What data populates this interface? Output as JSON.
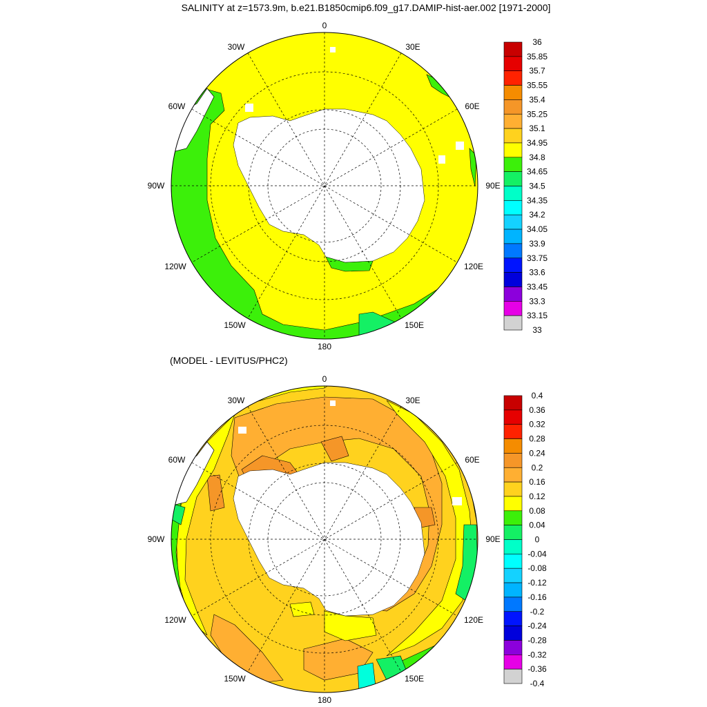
{
  "titles": {
    "top": "SALINITY at z=1573.9m, b.e21.B1850cmip6.f09_g17.DAMIP-hist-aer.002 [1971-2000]",
    "bottom": "(MODEL - LEVITUS/PHC2)"
  },
  "lon_labels": {
    "0": "0",
    "30E": "30E",
    "60E": "60E",
    "90E": "90E",
    "120E": "120E",
    "150E": "150E",
    "180": "180",
    "150W": "150W",
    "120W": "120W",
    "90W": "90W",
    "60W": "60W",
    "30W": "30W"
  },
  "colors": {
    "land": "#ffffff",
    "green": "#3cf00a",
    "yellow": "#ffff00",
    "light_orange": "#ffd21e",
    "orange": "#ffaf32",
    "dark_orange": "#f58c23",
    "mint": "#14f064",
    "cyan": "#00ffdc"
  },
  "colorbar_top": {
    "labels": [
      "36",
      "35.85",
      "35.7",
      "35.55",
      "35.4",
      "35.25",
      "35.1",
      "34.95",
      "34.8",
      "34.65",
      "34.5",
      "34.35",
      "34.2",
      "34.05",
      "33.9",
      "33.75",
      "33.6",
      "33.45",
      "33.3",
      "33.15",
      "33"
    ],
    "colors": [
      "#c80000",
      "#e60000",
      "#ff2200",
      "#f58c00",
      "#f59628",
      "#ffaf32",
      "#ffd21e",
      "#ffff00",
      "#3cf00a",
      "#14f064",
      "#00ffc8",
      "#00ffff",
      "#14d2ff",
      "#00b4ff",
      "#0078ff",
      "#0014ff",
      "#0000dc",
      "#8c00dc",
      "#e600e6",
      "#d2d2d2",
      "#6e6e6e"
    ]
  },
  "colorbar_bottom": {
    "labels": [
      "0.4",
      "0.36",
      "0.32",
      "0.28",
      "0.24",
      "0.2",
      "0.16",
      "0.12",
      "0.08",
      "0.04",
      "0",
      "-0.04",
      "-0.08",
      "-0.12",
      "-0.16",
      "-0.2",
      "-0.24",
      "-0.28",
      "-0.32",
      "-0.36",
      "-0.4"
    ],
    "colors": [
      "#c80000",
      "#e60000",
      "#ff2200",
      "#f58c00",
      "#f59628",
      "#ffaf32",
      "#ffd21e",
      "#ffff00",
      "#3cf00a",
      "#14f064",
      "#00ffc8",
      "#00ffff",
      "#14d2ff",
      "#00b4ff",
      "#0078ff",
      "#0014ff",
      "#0000dc",
      "#8c00dc",
      "#e600e6",
      "#d2d2d2",
      "#6e6e6e"
    ]
  }
}
